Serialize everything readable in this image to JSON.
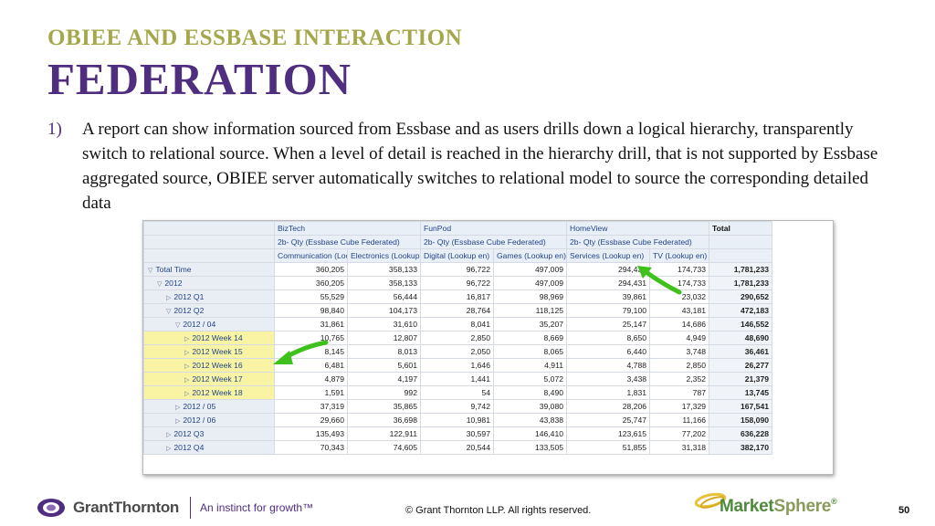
{
  "slide": {
    "subtitle": "OBIEE AND ESSBASE INTERACTION",
    "title": "FEDERATION",
    "point_number": "1)",
    "point_text": "A report can show information sourced from Essbase and as users drills down a logical hierarchy, transparently switch to relational source. When a level of detail is reached in the hierarchy drill, that is not supported by Essbase aggregated source, OBIEE server automatically switches to relational model to source the corresponding detailed data"
  },
  "report": {
    "groups": [
      "BizTech",
      "FunPod",
      "HomeView"
    ],
    "measure": "2b- Qty (Essbase Cube Federated)",
    "total_label": "Total",
    "columns": [
      "Communication (Lookup en)",
      "Electronics (Lookup en)",
      "Digital (Lookup en)",
      "Games (Lookup en)",
      "Services (Lookup en)",
      "TV (Lookup en)"
    ],
    "rows": [
      {
        "label": "Total Time",
        "indent": 0,
        "expanded": true,
        "highlight": false,
        "values": [
          "360,205",
          "358,133",
          "96,722",
          "497,009",
          "294,431",
          "174,733"
        ],
        "total": "1,781,233"
      },
      {
        "label": "2012",
        "indent": 1,
        "expanded": true,
        "highlight": false,
        "values": [
          "360,205",
          "358,133",
          "96,722",
          "497,009",
          "294,431",
          "174,733"
        ],
        "total": "1,781,233"
      },
      {
        "label": "2012 Q1",
        "indent": 2,
        "expanded": false,
        "highlight": false,
        "values": [
          "55,529",
          "56,444",
          "16,817",
          "98,969",
          "39,861",
          "23,032"
        ],
        "total": "290,652"
      },
      {
        "label": "2012 Q2",
        "indent": 2,
        "expanded": true,
        "highlight": false,
        "values": [
          "98,840",
          "104,173",
          "28,764",
          "118,125",
          "79,100",
          "43,181"
        ],
        "total": "472,183"
      },
      {
        "label": "2012 / 04",
        "indent": 3,
        "expanded": true,
        "highlight": false,
        "values": [
          "31,861",
          "31,610",
          "8,041",
          "35,207",
          "25,147",
          "14,686"
        ],
        "total": "146,552"
      },
      {
        "label": "2012 Week 14",
        "indent": 4,
        "expanded": false,
        "highlight": true,
        "values": [
          "10,765",
          "12,807",
          "2,850",
          "8,669",
          "8,650",
          "4,949"
        ],
        "total": "48,690"
      },
      {
        "label": "2012 Week 15",
        "indent": 4,
        "expanded": false,
        "highlight": true,
        "values": [
          "8,145",
          "8,013",
          "2,050",
          "8,065",
          "6,440",
          "3,748"
        ],
        "total": "36,461"
      },
      {
        "label": "2012 Week 16",
        "indent": 4,
        "expanded": false,
        "highlight": true,
        "values": [
          "6,481",
          "5,601",
          "1,646",
          "4,911",
          "4,788",
          "2,850"
        ],
        "total": "26,277"
      },
      {
        "label": "2012 Week 17",
        "indent": 4,
        "expanded": false,
        "highlight": true,
        "values": [
          "4,879",
          "4,197",
          "1,441",
          "5,072",
          "3,438",
          "2,352"
        ],
        "total": "21,379"
      },
      {
        "label": "2012 Week 18",
        "indent": 4,
        "expanded": false,
        "highlight": true,
        "values": [
          "1,591",
          "992",
          "54",
          "8,490",
          "1,831",
          "787"
        ],
        "total": "13,745"
      },
      {
        "label": "2012 / 05",
        "indent": 3,
        "expanded": false,
        "highlight": false,
        "values": [
          "37,319",
          "35,865",
          "9,742",
          "39,080",
          "28,206",
          "17,329"
        ],
        "total": "167,541"
      },
      {
        "label": "2012 / 06",
        "indent": 3,
        "expanded": false,
        "highlight": false,
        "values": [
          "29,660",
          "36,698",
          "10,981",
          "43,838",
          "25,747",
          "11,166"
        ],
        "total": "158,090"
      },
      {
        "label": "2012 Q3",
        "indent": 2,
        "expanded": false,
        "highlight": false,
        "values": [
          "135,493",
          "122,911",
          "30,597",
          "146,410",
          "123,615",
          "77,202"
        ],
        "total": "636,228"
      },
      {
        "label": "2012 Q4",
        "indent": 2,
        "expanded": false,
        "highlight": false,
        "values": [
          "70,343",
          "74,605",
          "20,544",
          "133,505",
          "51,855",
          "31,318"
        ],
        "total": "382,170"
      }
    ]
  },
  "footer": {
    "brand": "GrantThornton",
    "tagline": "An instinct for growth™",
    "copyright": "© Grant Thornton LLP.  All rights reserved.",
    "partner_brand_a": "Market",
    "partner_brand_b": "Sphere",
    "partner_trademark": "®",
    "page_number": "50"
  },
  "colors": {
    "subtitle": "#a4a84a",
    "title": "#4f2d7f",
    "highlight": "#f8f4a4",
    "arrow": "#3ec21b"
  }
}
